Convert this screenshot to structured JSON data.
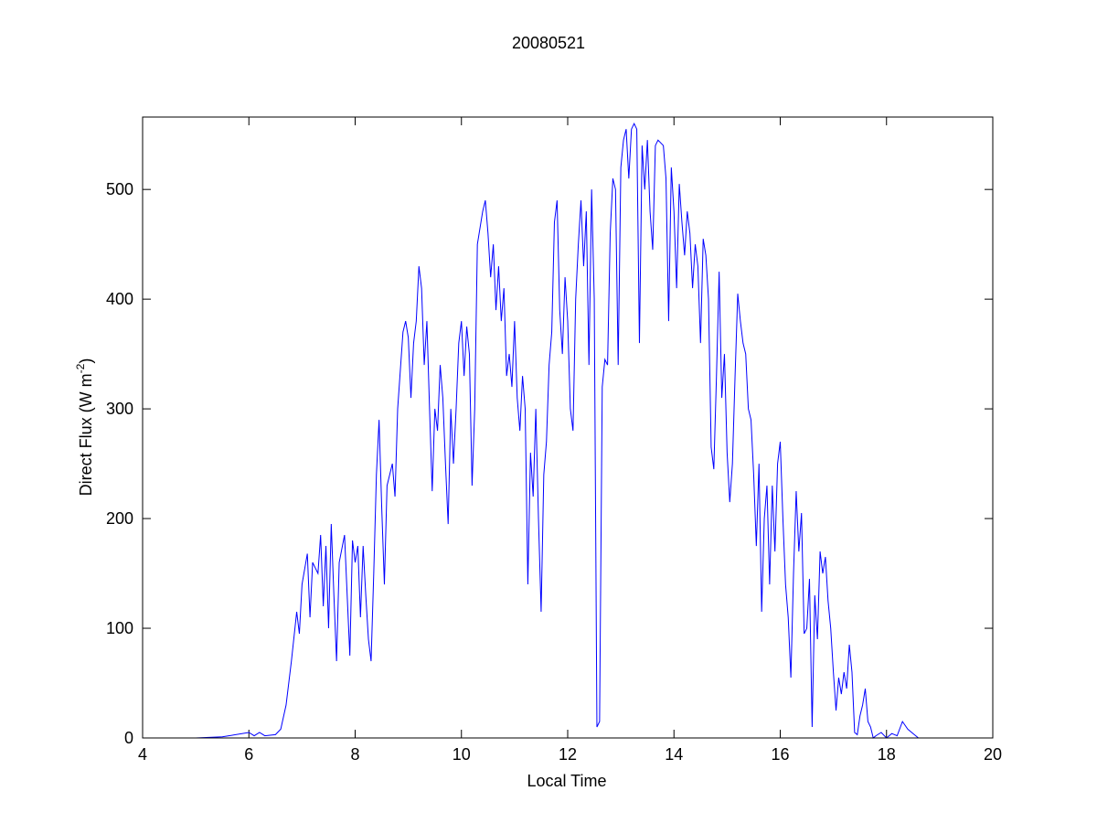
{
  "chart_data": {
    "type": "line",
    "title": "20080521",
    "x_label": "Local Time",
    "y_label": {
      "text": "Direct Flux (W m",
      "superscript": "-2",
      "suffix": ")"
    },
    "xlim": [
      4,
      20
    ],
    "ylim": [
      0,
      566
    ],
    "xticks": [
      4,
      6,
      8,
      10,
      12,
      14,
      16,
      18,
      20
    ],
    "yticks": [
      0,
      100,
      200,
      300,
      400,
      500
    ],
    "grid": false,
    "series": [
      {
        "color": "#0000ff",
        "x": [
          4.0,
          5.0,
          5.5,
          6.0,
          6.1,
          6.2,
          6.3,
          6.5,
          6.6,
          6.7,
          6.8,
          6.9,
          6.95,
          7.0,
          7.1,
          7.15,
          7.2,
          7.3,
          7.35,
          7.4,
          7.45,
          7.5,
          7.55,
          7.6,
          7.65,
          7.7,
          7.8,
          7.85,
          7.9,
          7.95,
          8.0,
          8.05,
          8.1,
          8.15,
          8.2,
          8.25,
          8.3,
          8.35,
          8.4,
          8.45,
          8.5,
          8.55,
          8.6,
          8.7,
          8.75,
          8.8,
          8.9,
          8.95,
          9.0,
          9.05,
          9.1,
          9.15,
          9.2,
          9.25,
          9.3,
          9.35,
          9.4,
          9.45,
          9.5,
          9.55,
          9.6,
          9.65,
          9.7,
          9.75,
          9.8,
          9.85,
          9.9,
          9.95,
          10.0,
          10.05,
          10.1,
          10.15,
          10.2,
          10.25,
          10.3,
          10.4,
          10.45,
          10.5,
          10.55,
          10.6,
          10.65,
          10.7,
          10.75,
          10.8,
          10.85,
          10.9,
          10.95,
          11.0,
          11.05,
          11.1,
          11.15,
          11.2,
          11.25,
          11.3,
          11.35,
          11.4,
          11.45,
          11.5,
          11.55,
          11.6,
          11.65,
          11.7,
          11.75,
          11.8,
          11.85,
          11.9,
          11.95,
          12.0,
          12.05,
          12.1,
          12.15,
          12.2,
          12.25,
          12.3,
          12.35,
          12.4,
          12.45,
          12.5,
          12.55,
          12.6,
          12.65,
          12.7,
          12.75,
          12.8,
          12.85,
          12.9,
          12.95,
          13.0,
          13.05,
          13.1,
          13.15,
          13.2,
          13.25,
          13.3,
          13.35,
          13.4,
          13.45,
          13.5,
          13.55,
          13.6,
          13.65,
          13.7,
          13.8,
          13.85,
          13.9,
          13.95,
          14.0,
          14.05,
          14.1,
          14.15,
          14.2,
          14.25,
          14.3,
          14.35,
          14.4,
          14.45,
          14.5,
          14.55,
          14.6,
          14.65,
          14.7,
          14.75,
          14.8,
          14.85,
          14.9,
          14.95,
          15.0,
          15.05,
          15.1,
          15.15,
          15.2,
          15.25,
          15.3,
          15.35,
          15.4,
          15.45,
          15.5,
          15.55,
          15.6,
          15.65,
          15.7,
          15.75,
          15.8,
          15.85,
          15.9,
          15.95,
          16.0,
          16.05,
          16.1,
          16.15,
          16.2,
          16.25,
          16.3,
          16.35,
          16.4,
          16.45,
          16.5,
          16.55,
          16.6,
          16.65,
          16.7,
          16.75,
          16.8,
          16.85,
          16.9,
          16.95,
          17.0,
          17.05,
          17.1,
          17.15,
          17.2,
          17.25,
          17.3,
          17.35,
          17.4,
          17.45,
          17.5,
          17.55,
          17.6,
          17.65,
          17.7,
          17.75,
          17.8,
          17.9,
          18.0,
          18.1,
          18.2,
          18.3,
          18.4,
          18.5,
          18.6,
          19.0,
          19.7
        ],
        "values": [
          0,
          0,
          1,
          5,
          2,
          5,
          2,
          3,
          8,
          30,
          70,
          115,
          95,
          140,
          168,
          110,
          160,
          150,
          185,
          120,
          175,
          100,
          195,
          130,
          70,
          160,
          185,
          130,
          75,
          180,
          160,
          175,
          110,
          175,
          130,
          90,
          70,
          150,
          240,
          290,
          210,
          140,
          230,
          250,
          220,
          300,
          370,
          380,
          365,
          310,
          360,
          380,
          430,
          410,
          340,
          380,
          300,
          225,
          300,
          280,
          340,
          310,
          250,
          195,
          300,
          250,
          300,
          360,
          380,
          330,
          375,
          350,
          230,
          300,
          450,
          480,
          490,
          460,
          420,
          450,
          390,
          430,
          380,
          410,
          330,
          350,
          320,
          380,
          310,
          280,
          330,
          300,
          140,
          260,
          220,
          300,
          200,
          115,
          240,
          270,
          340,
          370,
          470,
          490,
          390,
          350,
          420,
          380,
          300,
          280,
          400,
          450,
          490,
          430,
          480,
          340,
          500,
          400,
          10,
          15,
          320,
          345,
          340,
          460,
          510,
          500,
          340,
          520,
          545,
          555,
          510,
          555,
          560,
          555,
          360,
          540,
          500,
          545,
          480,
          445,
          540,
          545,
          540,
          510,
          380,
          520,
          480,
          410,
          505,
          470,
          440,
          480,
          460,
          410,
          450,
          430,
          360,
          455,
          440,
          400,
          265,
          245,
          330,
          425,
          310,
          350,
          260,
          215,
          250,
          330,
          405,
          380,
          360,
          350,
          300,
          290,
          240,
          175,
          250,
          115,
          200,
          230,
          140,
          230,
          170,
          250,
          270,
          200,
          140,
          110,
          55,
          150,
          225,
          170,
          205,
          95,
          100,
          145,
          10,
          130,
          90,
          170,
          150,
          165,
          125,
          100,
          60,
          25,
          55,
          40,
          60,
          45,
          85,
          60,
          5,
          3,
          20,
          30,
          45,
          15,
          10,
          0,
          2,
          5,
          0,
          4,
          2,
          15,
          8,
          4,
          0,
          0,
          0
        ]
      }
    ]
  }
}
